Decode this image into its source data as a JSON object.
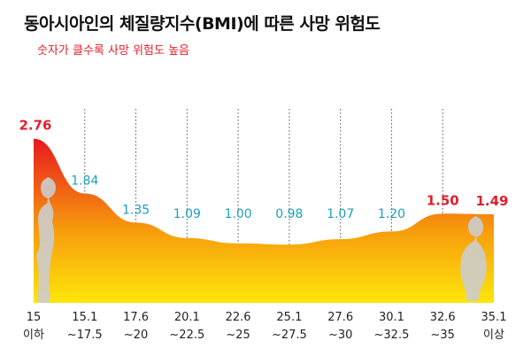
{
  "title": "동아시아인의 체질량지수(BMI)에 따른 사망 위험도",
  "subtitle": "숫자가 클수록 사망 위험도 높음",
  "chart_data": {
    "type": "area",
    "categories": [
      [
        "15",
        "이하"
      ],
      [
        "15.1",
        "~17.5"
      ],
      [
        "17.6",
        "~20"
      ],
      [
        "20.1",
        "~22.5"
      ],
      [
        "22.6",
        "~25"
      ],
      [
        "25.1",
        "~27.5"
      ],
      [
        "27.6",
        "~30"
      ],
      [
        "30.1",
        "~32.5"
      ],
      [
        "32.6",
        "~35"
      ],
      [
        "35.1",
        "이상"
      ]
    ],
    "values": [
      2.76,
      1.84,
      1.35,
      1.09,
      1.0,
      0.98,
      1.07,
      1.2,
      1.5,
      1.49
    ],
    "value_labels": [
      "2.76",
      "1.84",
      "1.35",
      "1.09",
      "1.00",
      "0.98",
      "1.07",
      "1.20",
      "1.50",
      "1.49"
    ],
    "highlighted": [
      true,
      false,
      false,
      false,
      false,
      false,
      false,
      false,
      true,
      true
    ],
    "title": "동아시아인의 체질량지수(BMI)에 따른 사망 위험도",
    "subtitle": "숫자가 클수록 사망 위험도 높음",
    "ylim": [
      0,
      2.8
    ],
    "grid": "vertical-dotted",
    "colors": {
      "fill_high": "#e8191f",
      "fill_mid": "#f79a0c",
      "fill_low": "#fde60a",
      "label_normal": "#1a9fc0",
      "label_highlight": "#e0202e",
      "grid": "#555555",
      "figure": "#cccccc",
      "axis_text": "#222222"
    }
  }
}
